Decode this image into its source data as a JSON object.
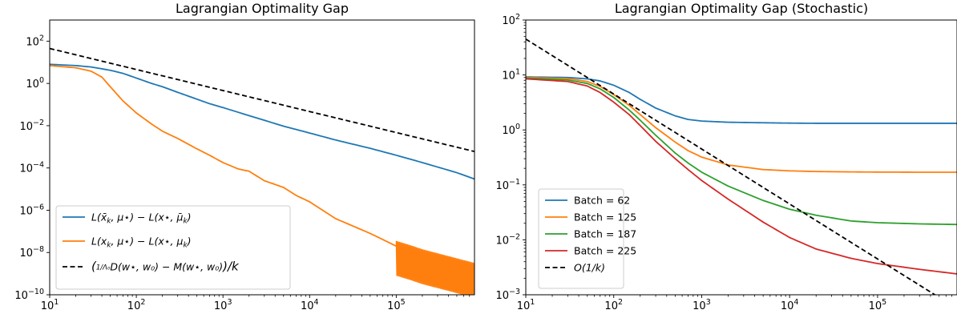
{
  "chart_data": [
    {
      "type": "line",
      "title": "Lagrangian Optimality Gap",
      "xlabel": "",
      "ylabel": "",
      "xscale": "log",
      "yscale": "log",
      "xlim": [
        10,
        800000
      ],
      "ylim": [
        1e-10,
        1000
      ],
      "x_ticks": [
        {
          "value": 10,
          "mant": "10",
          "exp": "1"
        },
        {
          "value": 100,
          "mant": "10",
          "exp": "2"
        },
        {
          "value": 1000,
          "mant": "10",
          "exp": "3"
        },
        {
          "value": 10000,
          "mant": "10",
          "exp": "4"
        },
        {
          "value": 100000,
          "mant": "10",
          "exp": "5"
        }
      ],
      "y_ticks": [
        {
          "value": 1e-10,
          "mant": "10",
          "exp": "−10"
        },
        {
          "value": 1e-08,
          "mant": "10",
          "exp": "−8"
        },
        {
          "value": 1e-06,
          "mant": "10",
          "exp": "−6"
        },
        {
          "value": 0.0001,
          "mant": "10",
          "exp": "−4"
        },
        {
          "value": 0.01,
          "mant": "10",
          "exp": "−2"
        },
        {
          "value": 1,
          "mant": "10",
          "exp": "0"
        },
        {
          "value": 100,
          "mant": "10",
          "exp": "2"
        }
      ],
      "legend_position": "bottom-left",
      "grid": false,
      "series": [
        {
          "name": "L(x̄_k, μ⋆) − L(x⋆, μ̄_k)",
          "color": "#1f77b4",
          "style": "solid",
          "x": [
            10,
            20,
            30,
            50,
            70,
            100,
            150,
            200,
            300,
            500,
            700,
            1000,
            2000,
            5000,
            10000,
            20000,
            50000,
            100000,
            200000,
            500000,
            800000
          ],
          "y": [
            8,
            7,
            6,
            4.2,
            3,
            1.8,
            1.0,
            0.7,
            0.38,
            0.18,
            0.11,
            0.072,
            0.03,
            0.0095,
            0.0045,
            0.0021,
            0.00085,
            0.0004,
            0.00018,
            6e-05,
            3e-05
          ]
        },
        {
          "name": "L(x_k, μ⋆) − L(x⋆, μ_k)",
          "color": "#ff7f0e",
          "style": "solid",
          "x": [
            10,
            20,
            30,
            40,
            50,
            70,
            100,
            150,
            200,
            300,
            500,
            700,
            1000,
            1500,
            2000,
            3000,
            5000,
            7000,
            10000,
            20000,
            50000,
            100000,
            150000,
            200000,
            500000,
            800000
          ],
          "y": [
            7,
            5.5,
            3.8,
            2.0,
            0.7,
            0.15,
            0.04,
            0.012,
            0.0055,
            0.0025,
            0.0008,
            0.0004,
            0.00018,
            9e-05,
            7e-05,
            2.5e-05,
            1.2e-05,
            5e-06,
            2.5e-06,
            4e-07,
            8e-08,
            2e-08,
            1.2e-08,
            8e-09,
            3e-09,
            1.8e-09
          ]
        },
        {
          "name": "(1/Λ₀ D(w⋆, w₀) − M(w⋆, w₀))/k",
          "color": "#000000",
          "style": "dashed",
          "x": [
            10,
            800000
          ],
          "y": [
            45,
            0.0006
          ]
        }
      ],
      "legend_labels": [
        {
          "main": "L(x̄",
          "sub": "k",
          "rest": ", μ⋆) − L(x⋆, μ̄",
          "sub2": "k",
          "end": ")"
        },
        {
          "main": "L(x",
          "sub": "k",
          "rest": ", μ⋆) − L(x⋆, μ",
          "sub2": "k",
          "end": ")"
        },
        {
          "main": "(",
          "frac": "1/Λ₀",
          "rest": "D(w⋆, w₀) − M(w⋆, w₀)",
          "end": ")/k"
        }
      ]
    },
    {
      "type": "line",
      "title": "Lagrangian Optimality Gap (Stochastic)",
      "xlabel": "",
      "ylabel": "",
      "xscale": "log",
      "yscale": "log",
      "xlim": [
        10,
        800000
      ],
      "ylim": [
        0.001,
        100
      ],
      "x_ticks": [
        {
          "value": 10,
          "mant": "10",
          "exp": "1"
        },
        {
          "value": 100,
          "mant": "10",
          "exp": "2"
        },
        {
          "value": 1000,
          "mant": "10",
          "exp": "3"
        },
        {
          "value": 10000,
          "mant": "10",
          "exp": "4"
        },
        {
          "value": 100000,
          "mant": "10",
          "exp": "5"
        }
      ],
      "y_ticks": [
        {
          "value": 0.001,
          "mant": "10",
          "exp": "−3"
        },
        {
          "value": 0.01,
          "mant": "10",
          "exp": "−2"
        },
        {
          "value": 0.1,
          "mant": "10",
          "exp": "−1"
        },
        {
          "value": 1,
          "mant": "10",
          "exp": "0"
        },
        {
          "value": 10,
          "mant": "10",
          "exp": "1"
        },
        {
          "value": 100,
          "mant": "10",
          "exp": "2"
        }
      ],
      "legend_position": "bottom-left",
      "grid": false,
      "series": [
        {
          "name": "Batch = 62",
          "color": "#1f77b4",
          "style": "solid",
          "x": [
            10,
            30,
            50,
            70,
            100,
            150,
            200,
            300,
            500,
            700,
            1000,
            2000,
            5000,
            10000,
            20000,
            50000,
            100000,
            300000,
            800000
          ],
          "y": [
            9.2,
            9.0,
            8.5,
            7.8,
            6.5,
            4.8,
            3.6,
            2.5,
            1.8,
            1.55,
            1.45,
            1.38,
            1.35,
            1.33,
            1.32,
            1.32,
            1.32,
            1.32,
            1.32
          ]
        },
        {
          "name": "Batch = 125",
          "color": "#ff7f0e",
          "style": "solid",
          "x": [
            10,
            30,
            50,
            70,
            100,
            150,
            200,
            300,
            500,
            700,
            1000,
            2000,
            5000,
            10000,
            20000,
            50000,
            100000,
            300000,
            800000
          ],
          "y": [
            9.0,
            8.6,
            7.6,
            6.2,
            4.4,
            2.8,
            1.9,
            1.1,
            0.6,
            0.42,
            0.32,
            0.23,
            0.19,
            0.18,
            0.175,
            0.172,
            0.171,
            0.17,
            0.17
          ]
        },
        {
          "name": "Batch = 187",
          "color": "#2ca02c",
          "style": "solid",
          "x": [
            10,
            30,
            50,
            70,
            100,
            150,
            200,
            300,
            500,
            700,
            1000,
            2000,
            5000,
            10000,
            20000,
            50000,
            100000,
            300000,
            800000
          ],
          "y": [
            8.8,
            8.1,
            7.0,
            5.6,
            3.9,
            2.3,
            1.5,
            0.8,
            0.38,
            0.25,
            0.17,
            0.095,
            0.052,
            0.036,
            0.028,
            0.022,
            0.0205,
            0.0195,
            0.019
          ]
        },
        {
          "name": "Batch = 225",
          "color": "#d62728",
          "style": "solid",
          "x": [
            10,
            30,
            50,
            70,
            100,
            150,
            200,
            300,
            500,
            700,
            1000,
            2000,
            5000,
            10000,
            20000,
            50000,
            100000,
            300000,
            800000
          ],
          "y": [
            8.5,
            7.6,
            6.3,
            4.8,
            3.2,
            1.9,
            1.2,
            0.62,
            0.3,
            0.19,
            0.12,
            0.055,
            0.021,
            0.011,
            0.0068,
            0.0046,
            0.0037,
            0.0029,
            0.0024
          ]
        },
        {
          "name": "O(1/k)",
          "color": "#000000",
          "style": "dashed",
          "x": [
            10,
            800000
          ],
          "y": [
            45,
            0.00056
          ]
        }
      ]
    }
  ]
}
